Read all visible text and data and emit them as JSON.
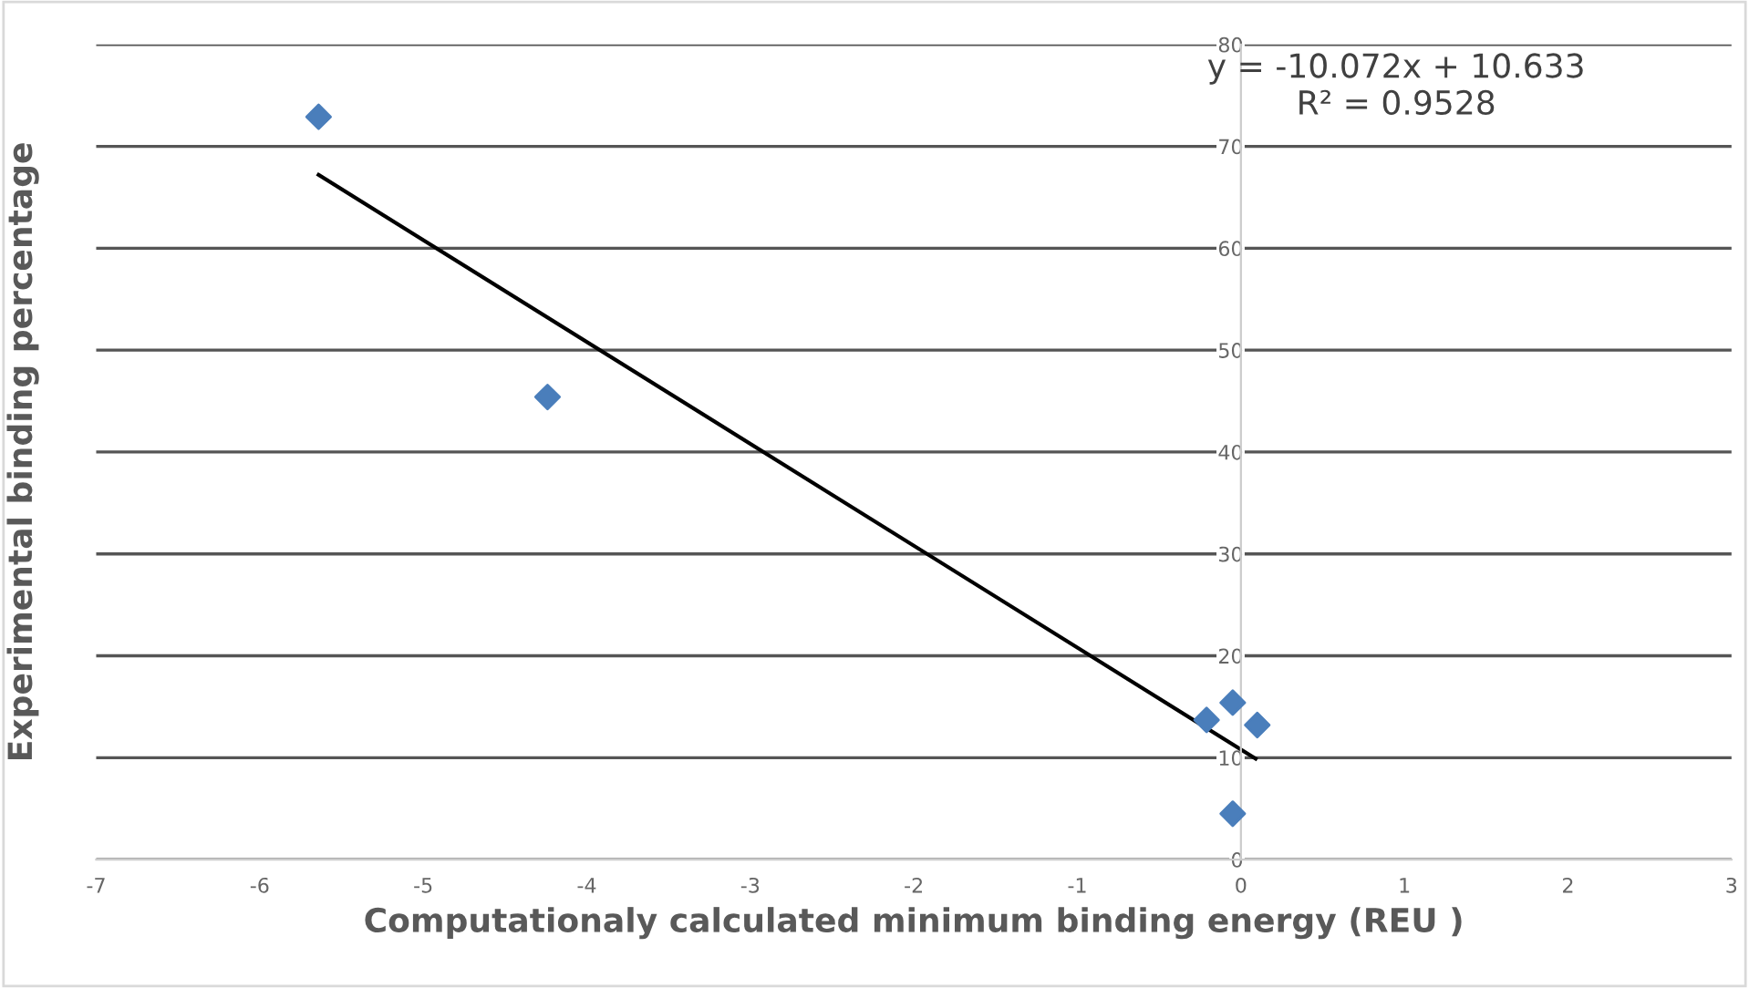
{
  "chart_data": {
    "type": "scatter",
    "xlabel": "Computationaly calculated minimum binding energy (REU )",
    "ylabel": "Experimental binding percentage",
    "series": [
      {
        "color": "#4a7ebb",
        "marker": "diamond",
        "x": [
          -5.64,
          -4.24,
          -0.21,
          -0.05,
          0.1,
          -0.05
        ],
        "values": [
          72.9,
          45.4,
          13.7,
          15.4,
          13.2,
          4.5
        ]
      },
      {
        "type": "line",
        "color": "#000000",
        "marker": "none",
        "x": [
          -5.64,
          0.09
        ],
        "values": [
          67.2,
          9.9
        ]
      }
    ],
    "xlim": [
      -7,
      3
    ],
    "xticks": [
      -7,
      -6,
      -5,
      -4,
      -3,
      -2,
      -1,
      0,
      1,
      2,
      3
    ],
    "ylim": [
      0,
      80
    ],
    "yticks": [
      0,
      10,
      20,
      30,
      40,
      50,
      60,
      70,
      80
    ],
    "grid": "y",
    "legend": false,
    "annotations": [
      "y = -10.072x + 10.633\nR² = 0.9528"
    ]
  }
}
